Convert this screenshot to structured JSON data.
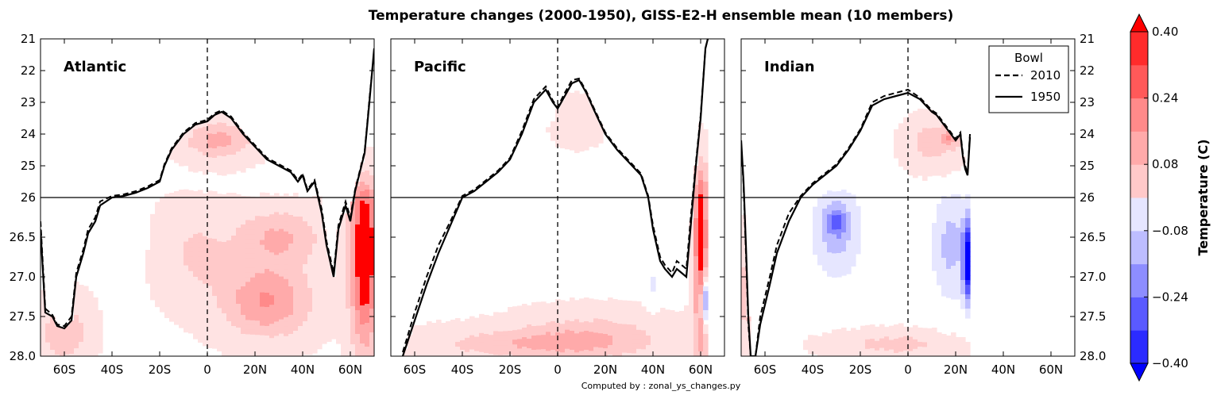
{
  "chart_data": {
    "type": "contourf",
    "title": "Temperature changes (2000-1950), GISS-E2-H ensemble mean (10 members)",
    "footer": "Computed by : zonal_ys_changes.py",
    "x_ticks": [
      {
        "value": -60,
        "label": "60S"
      },
      {
        "value": -40,
        "label": "40S"
      },
      {
        "value": -20,
        "label": "20S"
      },
      {
        "value": 0,
        "label": "0"
      },
      {
        "value": 20,
        "label": "20N"
      },
      {
        "value": 40,
        "label": "40N"
      },
      {
        "value": 60,
        "label": "60N"
      }
    ],
    "xlim": [
      -70,
      70
    ],
    "y_ticks": [
      {
        "value": 21,
        "label": "21"
      },
      {
        "value": 22,
        "label": "22"
      },
      {
        "value": 23,
        "label": "23"
      },
      {
        "value": 24,
        "label": "24"
      },
      {
        "value": 25,
        "label": "25"
      },
      {
        "value": 26,
        "label": "26"
      },
      {
        "value": 26.5,
        "label": "26.5"
      },
      {
        "value": 27.0,
        "label": "27.0"
      },
      {
        "value": 27.5,
        "label": "27.5"
      },
      {
        "value": 28.0,
        "label": "28.0"
      }
    ],
    "y_scale": "piecewise: linear 21-26 (upper half), linear 26-28 (lower half); inverted",
    "ylim": [
      21,
      28
    ],
    "hline": 26,
    "vline": 0,
    "legend": {
      "title": "Bowl",
      "placement": "top-right of Indian panel",
      "entries": [
        {
          "label": "2010",
          "style": "dashed"
        },
        {
          "label": "1950",
          "style": "solid"
        }
      ]
    },
    "colorbar": {
      "label": "Temperature (C)",
      "ticks": [
        "0.40",
        "0.24",
        "0.08",
        "−0.08",
        "−0.24",
        "−0.40"
      ],
      "levels": [
        -0.4,
        -0.32,
        -0.24,
        -0.16,
        -0.08,
        0.0,
        0.08,
        0.16,
        0.24,
        0.32,
        0.4
      ],
      "extend": "both",
      "colors": [
        "#0000ff",
        "#2b2bff",
        "#5a5aff",
        "#8d8dff",
        "#bdbdff",
        "#e6e6ff",
        "#ffffff",
        "#ffe3e3",
        "#ffc9c9",
        "#ffaaaa",
        "#ff8a8a",
        "#ff5959",
        "#ff2b2b",
        "#ff0000"
      ]
    },
    "panels": [
      {
        "name": "Atlantic",
        "bowl_1950": [
          [
            -70,
            26.4
          ],
          [
            -68,
            27.45
          ],
          [
            -65,
            27.5
          ],
          [
            -63,
            27.62
          ],
          [
            -60,
            27.65
          ],
          [
            -57,
            27.55
          ],
          [
            -55,
            27.0
          ],
          [
            -52,
            26.7
          ],
          [
            -50,
            26.45
          ],
          [
            -47,
            26.3
          ],
          [
            -45,
            26.1
          ],
          [
            -40,
            26.0
          ],
          [
            -35,
            25.95
          ],
          [
            -30,
            25.85
          ],
          [
            -25,
            25.7
          ],
          [
            -20,
            25.5
          ],
          [
            -18,
            25.0
          ],
          [
            -15,
            24.5
          ],
          [
            -10,
            24.0
          ],
          [
            -5,
            23.7
          ],
          [
            0,
            23.6
          ],
          [
            3,
            23.4
          ],
          [
            6,
            23.3
          ],
          [
            10,
            23.5
          ],
          [
            15,
            24.0
          ],
          [
            20,
            24.4
          ],
          [
            25,
            24.8
          ],
          [
            30,
            25.0
          ],
          [
            35,
            25.2
          ],
          [
            38,
            25.5
          ],
          [
            40,
            25.3
          ],
          [
            42,
            25.8
          ],
          [
            45,
            25.5
          ],
          [
            48,
            26.2
          ],
          [
            50,
            26.6
          ],
          [
            53,
            27.0
          ],
          [
            55,
            26.4
          ],
          [
            58,
            26.1
          ],
          [
            60,
            26.3
          ],
          [
            62,
            25.8
          ],
          [
            64,
            25.2
          ],
          [
            66,
            24.6
          ],
          [
            67,
            23.8
          ],
          [
            68,
            23.0
          ],
          [
            70,
            21.3
          ]
        ],
        "bowl_2010": [
          [
            -70,
            26.3
          ],
          [
            -68,
            27.4
          ],
          [
            -65,
            27.48
          ],
          [
            -63,
            27.6
          ],
          [
            -60,
            27.62
          ],
          [
            -57,
            27.5
          ],
          [
            -55,
            26.95
          ],
          [
            -52,
            26.65
          ],
          [
            -50,
            26.4
          ],
          [
            -47,
            26.25
          ],
          [
            -45,
            26.05
          ],
          [
            -40,
            25.95
          ],
          [
            -35,
            25.9
          ],
          [
            -30,
            25.8
          ],
          [
            -25,
            25.65
          ],
          [
            -20,
            25.45
          ],
          [
            -18,
            24.95
          ],
          [
            -15,
            24.45
          ],
          [
            -10,
            23.95
          ],
          [
            -5,
            23.65
          ],
          [
            0,
            23.55
          ],
          [
            3,
            23.35
          ],
          [
            6,
            23.25
          ],
          [
            10,
            23.45
          ],
          [
            15,
            23.95
          ],
          [
            20,
            24.35
          ],
          [
            25,
            24.75
          ],
          [
            30,
            24.95
          ],
          [
            35,
            25.15
          ],
          [
            38,
            25.45
          ],
          [
            40,
            25.25
          ],
          [
            42,
            25.75
          ],
          [
            45,
            25.45
          ],
          [
            48,
            26.15
          ],
          [
            50,
            26.55
          ],
          [
            53,
            26.95
          ],
          [
            55,
            26.35
          ],
          [
            58,
            26.05
          ],
          [
            60,
            26.25
          ],
          [
            62,
            25.75
          ],
          [
            64,
            25.15
          ],
          [
            66,
            24.55
          ],
          [
            67,
            23.75
          ],
          [
            68,
            22.9
          ],
          [
            70,
            21.4
          ]
        ],
        "anomaly_blobs": [
          {
            "lat": 25,
            "sigma": 27.3,
            "rlat": 18,
            "rsig": 0.45,
            "value": 0.26
          },
          {
            "lat": 30,
            "sigma": 26.5,
            "rlat": 18,
            "rsig": 0.35,
            "value": 0.18
          },
          {
            "lat": 5,
            "sigma": 24.2,
            "rlat": 14,
            "rsig": 0.6,
            "value": 0.2
          },
          {
            "lat": -5,
            "sigma": 26.7,
            "rlat": 15,
            "rsig": 0.6,
            "value": 0.1
          },
          {
            "lat": -35,
            "sigma": 26.5,
            "rlat": 7,
            "rsig": 0.4,
            "value": -0.06
          },
          {
            "lat": -60,
            "sigma": 27.7,
            "rlat": 10,
            "rsig": 0.4,
            "value": 0.16
          },
          {
            "lat": 66,
            "sigma": 26.7,
            "rlat": 6,
            "rsig": 1.2,
            "value": 0.45
          },
          {
            "lat": 40,
            "sigma": 27.75,
            "rlat": 5,
            "rsig": 0.25,
            "value": 0.0
          }
        ]
      },
      {
        "name": "Pacific",
        "bowl_1950": [
          [
            -65,
            28.0
          ],
          [
            -60,
            27.55
          ],
          [
            -55,
            27.1
          ],
          [
            -50,
            26.7
          ],
          [
            -45,
            26.35
          ],
          [
            -40,
            26.0
          ],
          [
            -35,
            25.8
          ],
          [
            -30,
            25.5
          ],
          [
            -25,
            25.2
          ],
          [
            -20,
            24.8
          ],
          [
            -15,
            24.0
          ],
          [
            -10,
            23.0
          ],
          [
            -5,
            22.6
          ],
          [
            -2,
            23.0
          ],
          [
            0,
            23.2
          ],
          [
            3,
            22.8
          ],
          [
            6,
            22.4
          ],
          [
            9,
            22.3
          ],
          [
            12,
            22.7
          ],
          [
            15,
            23.2
          ],
          [
            20,
            24.0
          ],
          [
            25,
            24.5
          ],
          [
            30,
            24.9
          ],
          [
            35,
            25.3
          ],
          [
            38,
            26.0
          ],
          [
            40,
            26.4
          ],
          [
            43,
            26.8
          ],
          [
            45,
            26.9
          ],
          [
            48,
            27.0
          ],
          [
            50,
            26.9
          ],
          [
            52,
            26.95
          ],
          [
            54,
            27.0
          ],
          [
            56,
            26.3
          ],
          [
            58,
            25.0
          ],
          [
            60,
            23.5
          ],
          [
            62,
            21.3
          ],
          [
            63,
            21.0
          ]
        ],
        "bowl_2010": [
          [
            -65,
            27.95
          ],
          [
            -60,
            27.45
          ],
          [
            -55,
            27.0
          ],
          [
            -50,
            26.6
          ],
          [
            -45,
            26.3
          ],
          [
            -40,
            25.95
          ],
          [
            -35,
            25.75
          ],
          [
            -30,
            25.45
          ],
          [
            -25,
            25.15
          ],
          [
            -20,
            24.75
          ],
          [
            -15,
            23.9
          ],
          [
            -10,
            22.9
          ],
          [
            -5,
            22.5
          ],
          [
            -2,
            22.95
          ],
          [
            0,
            23.15
          ],
          [
            3,
            22.7
          ],
          [
            6,
            22.3
          ],
          [
            9,
            22.25
          ],
          [
            12,
            22.65
          ],
          [
            15,
            23.15
          ],
          [
            20,
            23.95
          ],
          [
            25,
            24.45
          ],
          [
            30,
            24.85
          ],
          [
            35,
            25.25
          ],
          [
            38,
            25.95
          ],
          [
            40,
            26.35
          ],
          [
            43,
            26.75
          ],
          [
            45,
            26.85
          ],
          [
            48,
            26.95
          ],
          [
            50,
            26.8
          ],
          [
            52,
            26.85
          ],
          [
            54,
            26.9
          ],
          [
            56,
            26.2
          ],
          [
            58,
            24.9
          ],
          [
            60,
            23.4
          ],
          [
            62,
            21.3
          ],
          [
            63,
            21.0
          ]
        ],
        "anomaly_blobs": [
          {
            "lat": -15,
            "sigma": 27.85,
            "rlat": 40,
            "rsig": 0.2,
            "value": 0.14
          },
          {
            "lat": 15,
            "sigma": 27.75,
            "rlat": 30,
            "rsig": 0.3,
            "value": 0.13
          },
          {
            "lat": 8,
            "sigma": 23.6,
            "rlat": 10,
            "rsig": 0.7,
            "value": 0.06
          },
          {
            "lat": -5,
            "sigma": 23.3,
            "rlat": 3,
            "rsig": 0.3,
            "value": -0.06
          },
          {
            "lat": -42,
            "sigma": 26.9,
            "rlat": 3,
            "rsig": 0.2,
            "value": -0.06
          },
          {
            "lat": 40,
            "sigma": 27.1,
            "rlat": 3,
            "rsig": 0.3,
            "value": -0.08
          },
          {
            "lat": 60,
            "sigma": 26.5,
            "rlat": 3,
            "rsig": 1.5,
            "value": 0.4
          },
          {
            "lat": 62,
            "sigma": 27.3,
            "rlat": 2,
            "rsig": 0.3,
            "value": -0.4
          }
        ]
      },
      {
        "name": "Indian",
        "bowl_1950": [
          [
            -70,
            24.2
          ],
          [
            -69,
            25.5
          ],
          [
            -68,
            26.6
          ],
          [
            -67,
            27.5
          ],
          [
            -66,
            28.0
          ],
          [
            -64,
            28.0
          ],
          [
            -62,
            27.6
          ],
          [
            -58,
            27.1
          ],
          [
            -55,
            26.7
          ],
          [
            -50,
            26.3
          ],
          [
            -45,
            26.0
          ],
          [
            -40,
            25.6
          ],
          [
            -35,
            25.3
          ],
          [
            -30,
            25.0
          ],
          [
            -25,
            24.5
          ],
          [
            -20,
            23.9
          ],
          [
            -15,
            23.1
          ],
          [
            -10,
            22.9
          ],
          [
            -5,
            22.8
          ],
          [
            0,
            22.7
          ],
          [
            5,
            22.9
          ],
          [
            10,
            23.3
          ],
          [
            12,
            23.4
          ],
          [
            15,
            23.7
          ],
          [
            18,
            24.0
          ],
          [
            20,
            24.2
          ],
          [
            22,
            24.0
          ],
          [
            23,
            24.7
          ],
          [
            24,
            25.1
          ],
          [
            25,
            25.3
          ],
          [
            26,
            24.1
          ]
        ],
        "bowl_2010": [
          [
            -70,
            24.3
          ],
          [
            -69,
            25.6
          ],
          [
            -68,
            26.7
          ],
          [
            -67,
            27.6
          ],
          [
            -66,
            28.0
          ],
          [
            -64,
            28.0
          ],
          [
            -62,
            27.5
          ],
          [
            -58,
            27.0
          ],
          [
            -55,
            26.6
          ],
          [
            -50,
            26.2
          ],
          [
            -45,
            25.95
          ],
          [
            -40,
            25.55
          ],
          [
            -35,
            25.25
          ],
          [
            -30,
            24.95
          ],
          [
            -25,
            24.45
          ],
          [
            -20,
            23.85
          ],
          [
            -15,
            23.0
          ],
          [
            -10,
            22.8
          ],
          [
            -5,
            22.7
          ],
          [
            0,
            22.6
          ],
          [
            5,
            22.85
          ],
          [
            10,
            23.25
          ],
          [
            12,
            23.35
          ],
          [
            15,
            23.65
          ],
          [
            18,
            23.95
          ],
          [
            20,
            24.15
          ],
          [
            22,
            23.95
          ],
          [
            23,
            24.6
          ],
          [
            24,
            25.0
          ],
          [
            25,
            25.25
          ],
          [
            26,
            24.0
          ]
        ],
        "anomaly_blobs": [
          {
            "lat": -30,
            "sigma": 26.4,
            "rlat": 10,
            "rsig": 0.6,
            "value": -0.2
          },
          {
            "lat": -30,
            "sigma": 26.3,
            "rlat": 4,
            "rsig": 0.15,
            "value": -0.2
          },
          {
            "lat": 18,
            "sigma": 26.6,
            "rlat": 8,
            "rsig": 0.7,
            "value": -0.18
          },
          {
            "lat": 25,
            "sigma": 26.8,
            "rlat": 2,
            "rsig": 0.5,
            "value": -0.5
          },
          {
            "lat": 10,
            "sigma": 24.3,
            "rlat": 10,
            "rsig": 0.7,
            "value": 0.14
          },
          {
            "lat": 18,
            "sigma": 24.1,
            "rlat": 4,
            "rsig": 0.3,
            "value": 0.2
          },
          {
            "lat": -5,
            "sigma": 27.85,
            "rlat": 25,
            "rsig": 0.15,
            "value": 0.12
          },
          {
            "lat": -68,
            "sigma": 27.2,
            "rlat": 2,
            "rsig": 0.6,
            "value": 0.16
          }
        ]
      }
    ]
  }
}
